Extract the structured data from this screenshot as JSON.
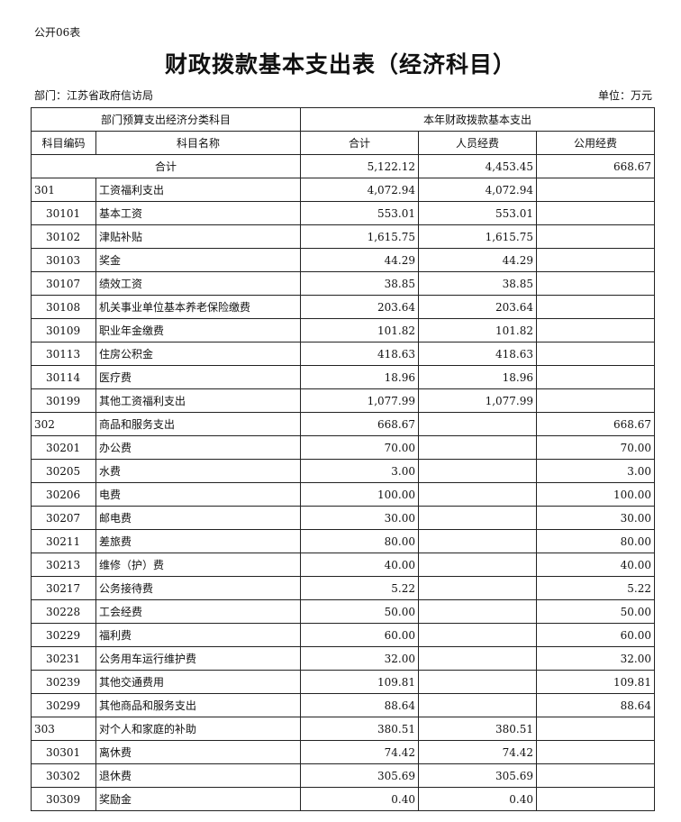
{
  "form_no": "公开06表",
  "title": "财政拨款基本支出表（经济科目）",
  "department": "部门：江苏省政府信访局",
  "unit": "单位：万元",
  "header": {
    "group_left": "部门预算支出经济分类科目",
    "group_right": "本年财政拨款基本支出",
    "code": "科目编码",
    "name": "科目名称",
    "total": "合计",
    "personnel": "人员经费",
    "public": "公用经费"
  },
  "total_row": {
    "label": "合计",
    "total": "5,122.12",
    "personnel": "4,453.45",
    "public": "668.67"
  },
  "rows": [
    {
      "code": "301",
      "name": "工资福利支出",
      "total": "4,072.94",
      "personnel": "4,072.94",
      "public": "",
      "level": 1
    },
    {
      "code": "30101",
      "name": "基本工资",
      "total": "553.01",
      "personnel": "553.01",
      "public": "",
      "level": 2
    },
    {
      "code": "30102",
      "name": "津贴补贴",
      "total": "1,615.75",
      "personnel": "1,615.75",
      "public": "",
      "level": 2
    },
    {
      "code": "30103",
      "name": "奖金",
      "total": "44.29",
      "personnel": "44.29",
      "public": "",
      "level": 2
    },
    {
      "code": "30107",
      "name": "绩效工资",
      "total": "38.85",
      "personnel": "38.85",
      "public": "",
      "level": 2
    },
    {
      "code": "30108",
      "name": "机关事业单位基本养老保险缴费",
      "total": "203.64",
      "personnel": "203.64",
      "public": "",
      "level": 2
    },
    {
      "code": "30109",
      "name": "职业年金缴费",
      "total": "101.82",
      "personnel": "101.82",
      "public": "",
      "level": 2
    },
    {
      "code": "30113",
      "name": "住房公积金",
      "total": "418.63",
      "personnel": "418.63",
      "public": "",
      "level": 2
    },
    {
      "code": "30114",
      "name": "医疗费",
      "total": "18.96",
      "personnel": "18.96",
      "public": "",
      "level": 2
    },
    {
      "code": "30199",
      "name": "其他工资福利支出",
      "total": "1,077.99",
      "personnel": "1,077.99",
      "public": "",
      "level": 2
    },
    {
      "code": "302",
      "name": "商品和服务支出",
      "total": "668.67",
      "personnel": "",
      "public": "668.67",
      "level": 1
    },
    {
      "code": "30201",
      "name": "办公费",
      "total": "70.00",
      "personnel": "",
      "public": "70.00",
      "level": 2
    },
    {
      "code": "30205",
      "name": "水费",
      "total": "3.00",
      "personnel": "",
      "public": "3.00",
      "level": 2
    },
    {
      "code": "30206",
      "name": "电费",
      "total": "100.00",
      "personnel": "",
      "public": "100.00",
      "level": 2
    },
    {
      "code": "30207",
      "name": "邮电费",
      "total": "30.00",
      "personnel": "",
      "public": "30.00",
      "level": 2
    },
    {
      "code": "30211",
      "name": "差旅费",
      "total": "80.00",
      "personnel": "",
      "public": "80.00",
      "level": 2
    },
    {
      "code": "30213",
      "name": "维修（护）费",
      "total": "40.00",
      "personnel": "",
      "public": "40.00",
      "level": 2
    },
    {
      "code": "30217",
      "name": "公务接待费",
      "total": "5.22",
      "personnel": "",
      "public": "5.22",
      "level": 2
    },
    {
      "code": "30228",
      "name": "工会经费",
      "total": "50.00",
      "personnel": "",
      "public": "50.00",
      "level": 2
    },
    {
      "code": "30229",
      "name": "福利费",
      "total": "60.00",
      "personnel": "",
      "public": "60.00",
      "level": 2
    },
    {
      "code": "30231",
      "name": "公务用车运行维护费",
      "total": "32.00",
      "personnel": "",
      "public": "32.00",
      "level": 2
    },
    {
      "code": "30239",
      "name": "其他交通费用",
      "total": "109.81",
      "personnel": "",
      "public": "109.81",
      "level": 2
    },
    {
      "code": "30299",
      "name": "其他商品和服务支出",
      "total": "88.64",
      "personnel": "",
      "public": "88.64",
      "level": 2
    },
    {
      "code": "303",
      "name": "对个人和家庭的补助",
      "total": "380.51",
      "personnel": "380.51",
      "public": "",
      "level": 1
    },
    {
      "code": "30301",
      "name": "离休费",
      "total": "74.42",
      "personnel": "74.42",
      "public": "",
      "level": 2
    },
    {
      "code": "30302",
      "name": "退休费",
      "total": "305.69",
      "personnel": "305.69",
      "public": "",
      "level": 2
    },
    {
      "code": "30309",
      "name": "奖励金",
      "total": "0.40",
      "personnel": "0.40",
      "public": "",
      "level": 2
    }
  ]
}
